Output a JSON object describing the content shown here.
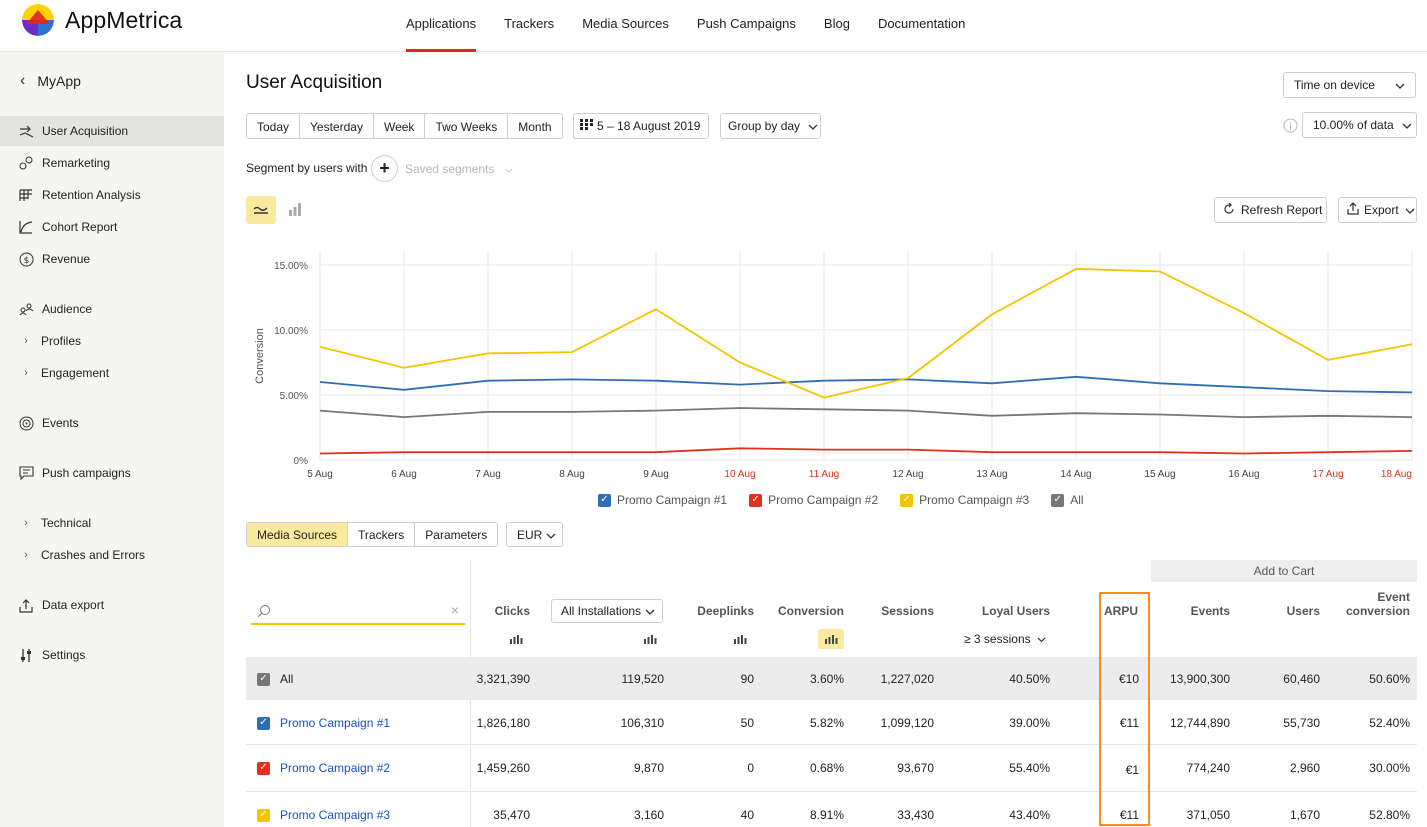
{
  "app": {
    "logo_text": "AppMetrica",
    "brand_colors": [
      "#ffd200",
      "#e4251a",
      "#6b2ec9",
      "#2a74d6"
    ]
  },
  "topnav": {
    "items": [
      "Applications",
      "Trackers",
      "Media Sources",
      "Push Campaigns",
      "Blog",
      "Documentation"
    ],
    "active": "Applications"
  },
  "sidebar": {
    "back_label": "MyApp",
    "items": [
      {
        "label": "User Acquisition",
        "icon": "user-acquisition-icon",
        "active": true
      },
      {
        "label": "Remarketing",
        "icon": "remarketing-icon"
      },
      {
        "label": "Retention Analysis",
        "icon": "retention-grid-icon"
      },
      {
        "label": "Cohort Report",
        "icon": "cohort-curve-icon"
      },
      {
        "label": "Revenue",
        "icon": "dollar-circle-icon"
      },
      {
        "label": "Audience",
        "icon": "audience-icon"
      },
      {
        "label": "Profiles",
        "icon": "chevron-right-icon"
      },
      {
        "label": "Engagement",
        "icon": "chevron-right-icon"
      },
      {
        "label": "Events",
        "icon": "target-icon"
      },
      {
        "label": "Push campaigns",
        "icon": "message-icon"
      },
      {
        "label": "Technical",
        "icon": "chevron-right-icon"
      },
      {
        "label": "Crashes and Errors",
        "icon": "chevron-right-icon"
      },
      {
        "label": "Data export",
        "icon": "upload-icon"
      },
      {
        "label": "Settings",
        "icon": "sliders-icon"
      }
    ]
  },
  "header": {
    "title": "User Acquisition",
    "time_select": "Time on device",
    "sample_select": "10.00% of data"
  },
  "period": {
    "buttons": [
      "Today",
      "Yesterday",
      "Week",
      "Two Weeks",
      "Month"
    ],
    "date_range": "5 – 18 August 2019",
    "group_by": "Group by day"
  },
  "segment": {
    "label": "Segment by users with",
    "saved_placeholder": "Saved segments"
  },
  "actions": {
    "refresh": "Refresh Report",
    "export": "Export"
  },
  "chart_data": {
    "type": "line",
    "ylabel": "Conversion",
    "x": [
      "5 Aug",
      "6 Aug",
      "7 Aug",
      "8 Aug",
      "9 Aug",
      "10 Aug",
      "11 Aug",
      "12 Aug",
      "13 Aug",
      "14 Aug",
      "15 Aug",
      "16 Aug",
      "17 Aug",
      "18 Aug"
    ],
    "weekend_labels": [
      "10 Aug",
      "11 Aug",
      "17 Aug",
      "18 Aug"
    ],
    "yticks": [
      "0%",
      "5.00%",
      "10.00%",
      "15.00%"
    ],
    "ylim": [
      0,
      16
    ],
    "grid": true,
    "series": [
      {
        "name": "Promo Campaign #1",
        "color": "#2f6eb5",
        "values": [
          6.0,
          5.4,
          6.1,
          6.2,
          6.1,
          5.8,
          6.1,
          6.2,
          5.9,
          6.4,
          5.9,
          5.6,
          5.3,
          5.2
        ]
      },
      {
        "name": "Promo Campaign #2",
        "color": "#e0301e",
        "values": [
          0.5,
          0.6,
          0.6,
          0.6,
          0.6,
          0.9,
          0.8,
          0.8,
          0.6,
          0.6,
          0.6,
          0.5,
          0.6,
          0.7
        ]
      },
      {
        "name": "Promo Campaign #3",
        "color": "#f5c400",
        "values": [
          8.7,
          7.1,
          8.2,
          8.3,
          11.6,
          7.5,
          4.8,
          6.3,
          11.2,
          14.7,
          14.5,
          11.3,
          7.7,
          8.9
        ]
      },
      {
        "name": "All",
        "color": "#777777",
        "values": [
          3.8,
          3.3,
          3.7,
          3.7,
          3.8,
          4.0,
          3.9,
          3.8,
          3.4,
          3.6,
          3.5,
          3.3,
          3.4,
          3.3
        ]
      }
    ]
  },
  "table": {
    "tabs": [
      "Media Sources",
      "Trackers",
      "Parameters"
    ],
    "currency": "EUR",
    "installations_select": "All Installations",
    "loyal_select": "≥ 3 sessions",
    "group_header": "Add to Cart",
    "headers": {
      "clicks": "Clicks",
      "deeplinks": "Deeplinks",
      "conversion": "Conversion",
      "sessions": "Sessions",
      "loyal": "Loyal Users",
      "arpu": "ARPU",
      "events": "Events",
      "users": "Users",
      "event_conv_1": "Event",
      "event_conv_2": "conversion"
    },
    "rows": [
      {
        "name": "All",
        "color": "#777777",
        "clicks": "3,321,390",
        "installs": "119,520",
        "deeplinks": "90",
        "conversion": "3.60%",
        "sessions": "1,227,020",
        "loyal": "40.50%",
        "arpu": "€10",
        "events": "13,900,300",
        "users": "60,460",
        "event_conv": "50.60%"
      },
      {
        "name": "Promo Campaign #1",
        "color": "#2f6eb5",
        "clicks": "1,826,180",
        "installs": "106,310",
        "deeplinks": "50",
        "conversion": "5.82%",
        "sessions": "1,099,120",
        "loyal": "39.00%",
        "arpu": "€11",
        "events": "12,744,890",
        "users": "55,730",
        "event_conv": "52.40%"
      },
      {
        "name": "Promo Campaign #2",
        "color": "#e0301e",
        "clicks": "1,459,260",
        "installs": "9,870",
        "deeplinks": "0",
        "conversion": "0.68%",
        "sessions": "93,670",
        "loyal": "55.40%",
        "arpu": "€1",
        "events": "774,240",
        "users": "2,960",
        "event_conv": "30.00%"
      },
      {
        "name": "Promo Campaign #3",
        "color": "#f5c400",
        "clicks": "35,470",
        "installs": "3,160",
        "deeplinks": "40",
        "conversion": "8.91%",
        "sessions": "33,430",
        "loyal": "43.40%",
        "arpu": "€11",
        "events": "371,050",
        "users": "1,670",
        "event_conv": "52.80%"
      }
    ]
  }
}
